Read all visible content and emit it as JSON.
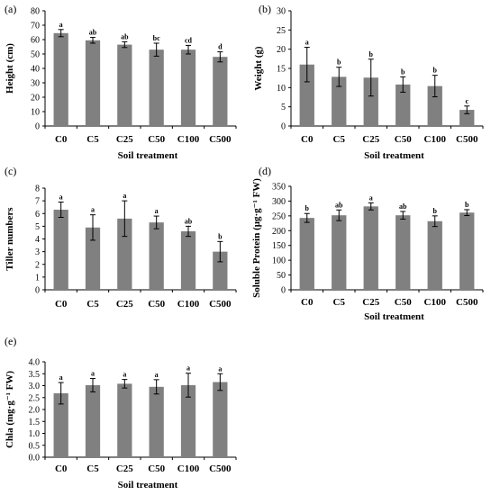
{
  "colors": {
    "bar": "#808080",
    "axis": "#000000",
    "errorbar": "#000000"
  },
  "chart_data": [
    {
      "type": "bar",
      "panel_label": "(a)",
      "xlabel": "Soil treatment",
      "ylabel": "Height (cm)",
      "ylim": [
        0,
        80
      ],
      "ytick_step": 10,
      "yticks": [
        "0",
        "10",
        "20",
        "30",
        "40",
        "50",
        "60",
        "70",
        "80"
      ],
      "categories": [
        "C0",
        "C5",
        "C25",
        "C50",
        "C100",
        "C500"
      ],
      "values": [
        64.5,
        59.5,
        56.5,
        53.0,
        53.0,
        48.0
      ],
      "errors": [
        2.5,
        2.0,
        2.0,
        4.5,
        3.0,
        3.5
      ],
      "letters": [
        "a",
        "ab",
        "ab",
        "bc",
        "cd",
        "d"
      ],
      "grid": false
    },
    {
      "type": "bar",
      "panel_label": "(b)",
      "xlabel": "Soil treatment",
      "ylabel": "Weight (g)",
      "ylim": [
        0,
        30
      ],
      "ytick_step": 5,
      "yticks": [
        "0",
        "5",
        "10",
        "15",
        "20",
        "25",
        "30"
      ],
      "categories": [
        "C0",
        "C5",
        "C25",
        "C50",
        "C100",
        "C500"
      ],
      "values": [
        16.0,
        12.8,
        12.6,
        10.8,
        10.4,
        4.2
      ],
      "errors": [
        4.5,
        2.5,
        4.8,
        2.0,
        2.8,
        1.0
      ],
      "letters": [
        "a",
        "b",
        "b",
        "b",
        "b",
        "c"
      ],
      "grid": false
    },
    {
      "type": "bar",
      "panel_label": "(c)",
      "xlabel": "",
      "ylabel": "Tiller numbers",
      "ylim": [
        0,
        8
      ],
      "ytick_step": 1,
      "yticks": [
        "0",
        "1",
        "2",
        "3",
        "4",
        "5",
        "6",
        "7",
        "8"
      ],
      "categories": [
        "C0",
        "C5",
        "C25",
        "C50",
        "C100",
        "C500"
      ],
      "values": [
        6.3,
        4.9,
        5.6,
        5.3,
        4.6,
        3.0
      ],
      "errors": [
        0.6,
        1.0,
        1.4,
        0.5,
        0.4,
        0.8
      ],
      "letters": [
        "a",
        "a",
        "a",
        "a",
        "ab",
        "b"
      ],
      "grid": false
    },
    {
      "type": "bar",
      "panel_label": "(d)",
      "xlabel": "Soil treatment",
      "ylabel": "Soluble Protein (μg·g⁻¹ FW)",
      "ylim": [
        0,
        350
      ],
      "ytick_step": 50,
      "yticks": [
        "0",
        "50",
        "100",
        "150",
        "200",
        "250",
        "300",
        "350"
      ],
      "categories": [
        "C0",
        "C5",
        "C25",
        "C50",
        "C100",
        "C500"
      ],
      "values": [
        243,
        252,
        282,
        252,
        232,
        261
      ],
      "errors": [
        15,
        18,
        12,
        13,
        18,
        10
      ],
      "letters": [
        "b",
        "ab",
        "a",
        "ab",
        "b",
        "b"
      ],
      "grid": false
    },
    {
      "type": "bar",
      "panel_label": "(e)",
      "xlabel": "Soil treatment",
      "ylabel": "Chla (mg·g⁻¹ FW)",
      "ylim": [
        0,
        4.0
      ],
      "ytick_step": 0.5,
      "yticks": [
        "0.0",
        "0.5",
        "1.0",
        "1.5",
        "2.0",
        "2.5",
        "3.0",
        "3.5",
        "4.0"
      ],
      "categories": [
        "C0",
        "C5",
        "C25",
        "C50",
        "C100",
        "C500"
      ],
      "values": [
        2.68,
        3.02,
        3.08,
        2.95,
        3.02,
        3.15
      ],
      "errors": [
        0.45,
        0.28,
        0.18,
        0.3,
        0.5,
        0.35
      ],
      "letters": [
        "a",
        "a",
        "a",
        "a",
        "a",
        "a"
      ],
      "grid": false
    }
  ]
}
